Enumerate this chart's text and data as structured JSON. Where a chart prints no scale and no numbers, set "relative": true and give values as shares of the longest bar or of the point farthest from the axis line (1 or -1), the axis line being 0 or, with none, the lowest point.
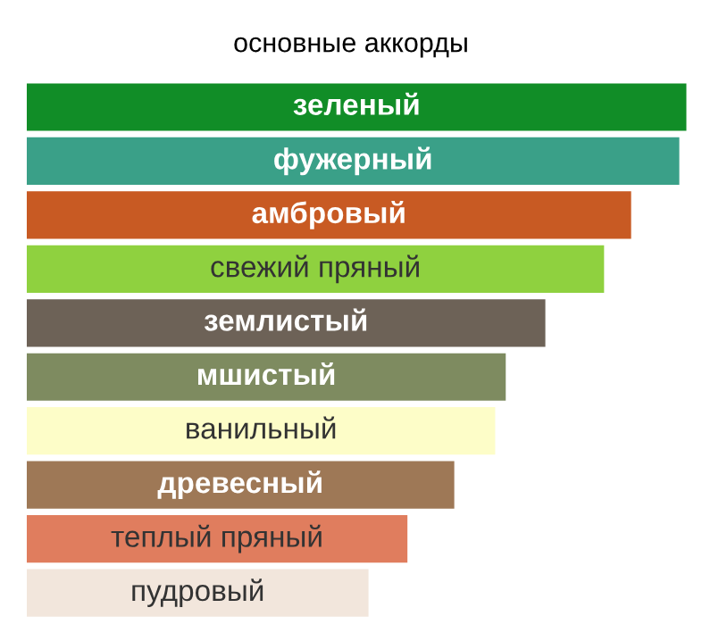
{
  "chart_data": {
    "type": "bar",
    "orientation": "horizontal",
    "relative": true,
    "title": "основные аккорды",
    "categories": [
      "зеленый",
      "фужерный",
      "амбровый",
      "свежий пряный",
      "землистый",
      "мшистый",
      "ванильный",
      "древесный",
      "теплый пряный",
      "пудровый"
    ],
    "values": [
      1,
      0.989,
      0.916,
      0.875,
      0.786,
      0.726,
      0.71,
      0.648,
      0.577,
      0.518
    ],
    "colors": [
      "#118d27",
      "#3aa088",
      "#c85a23",
      "#8fd13f",
      "#6d6257",
      "#7e8b60",
      "#fdfdc8",
      "#9e7856",
      "#e07d5e",
      "#f2e6dc"
    ]
  }
}
